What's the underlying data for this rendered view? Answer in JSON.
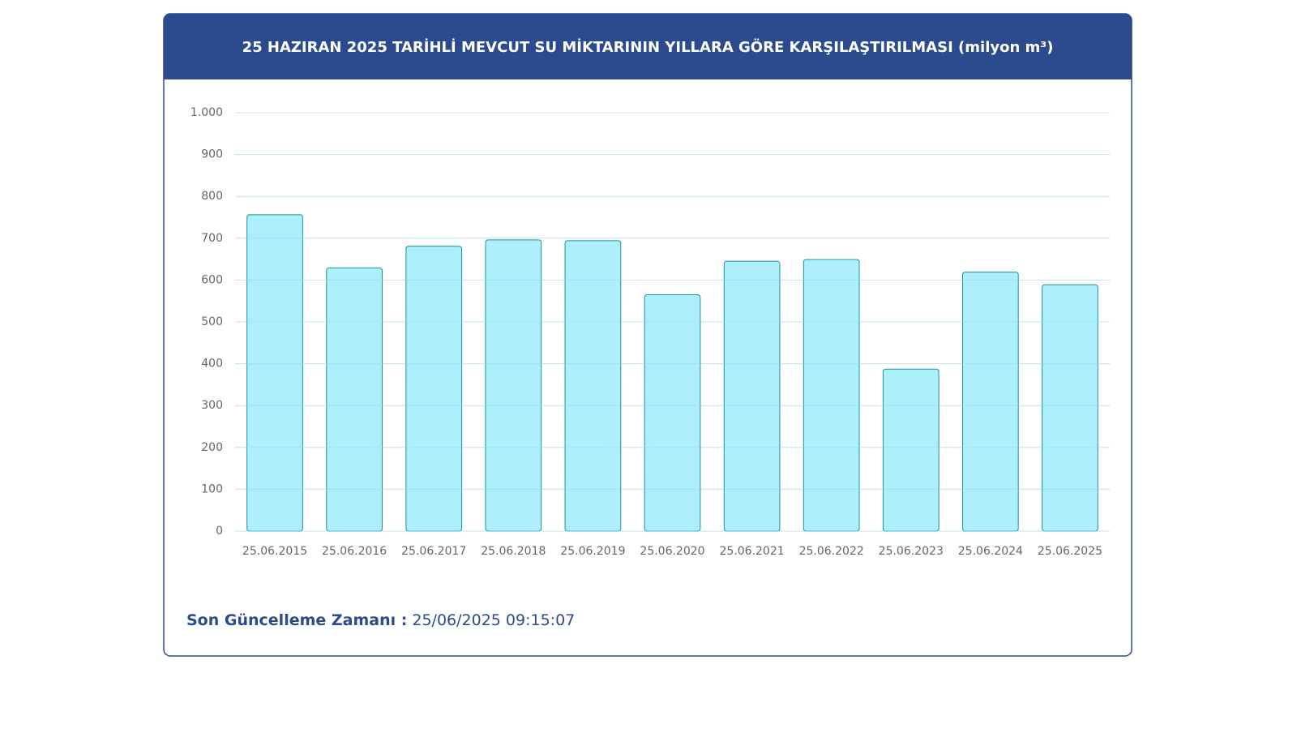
{
  "chart_data": {
    "type": "bar",
    "title": "25 HAZIRAN 2025 TARİHLİ MEVCUT SU MİKTARININ YILLARA GÖRE KARŞILAŞTIRILMASI (milyon m³)",
    "categories": [
      "25.06.2015",
      "25.06.2016",
      "25.06.2017",
      "25.06.2018",
      "25.06.2019",
      "25.06.2020",
      "25.06.2021",
      "25.06.2022",
      "25.06.2023",
      "25.06.2024",
      "25.06.2025"
    ],
    "values": [
      756,
      629,
      681,
      696,
      694,
      565,
      645,
      649,
      387,
      619,
      589
    ],
    "color": "#a9effc",
    "ylim": [
      0,
      1000
    ],
    "yticks": [
      0,
      100,
      200,
      300,
      400,
      500,
      600,
      700,
      800,
      900,
      {
        "value": 1000,
        "label": "1.000"
      }
    ],
    "grid": true
  },
  "footer": {
    "label": "Son Güncelleme Zamanı :",
    "value": "25/06/2025 09:15:07"
  }
}
